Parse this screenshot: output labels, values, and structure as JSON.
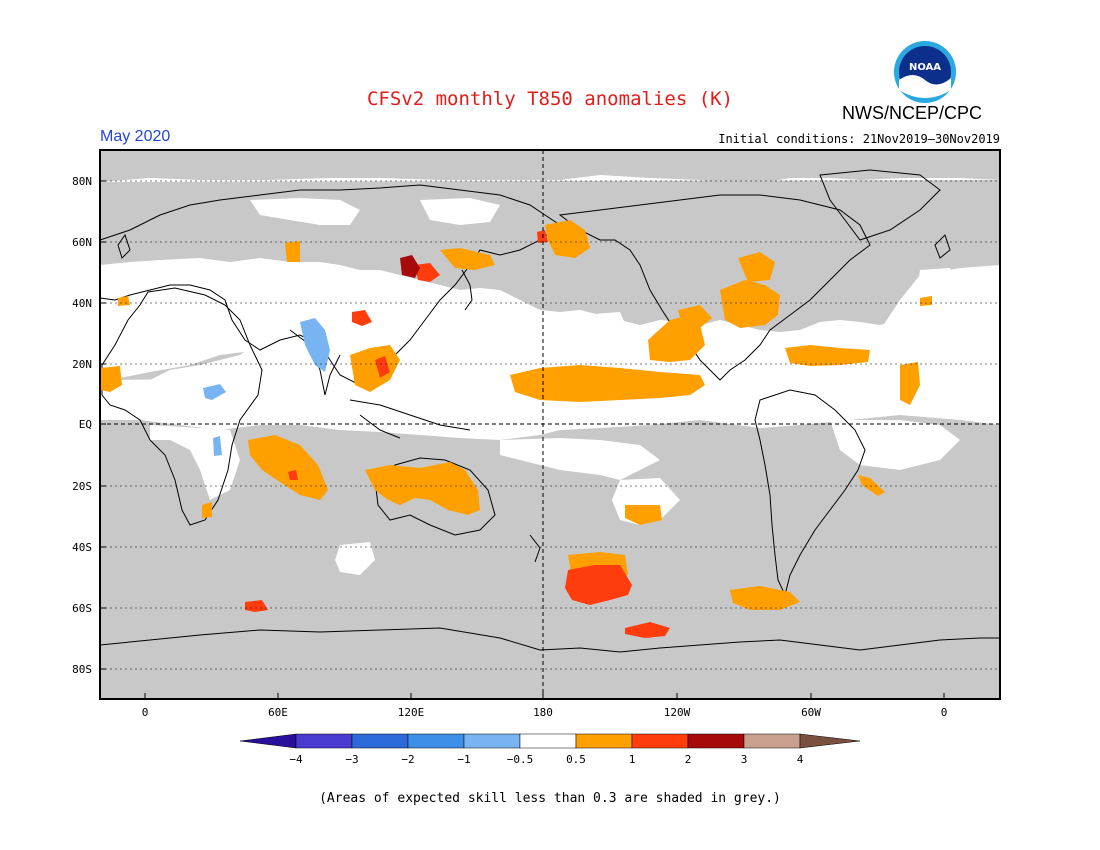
{
  "title": "CFSv2 monthly T850 anomalies (K)",
  "agency": "NWS/NCEP/CPC",
  "logo": {
    "text": "NOAA",
    "icon": "noaa-logo"
  },
  "month": "May 2020",
  "initial_conditions": "Initial conditions: 21Nov2019–30Nov2019",
  "footnote": "(Areas of expected skill less than 0.3 are shaded in grey.)",
  "map": {
    "lat_labels": [
      "80N",
      "60N",
      "40N",
      "20N",
      "EQ",
      "20S",
      "40S",
      "60S",
      "80S"
    ],
    "lon_labels": [
      "0",
      "60E",
      "120E",
      "180",
      "120W",
      "60W",
      "0"
    ],
    "skill_mask_color": "#c8c8c8",
    "ocean_color": "#ffffff",
    "coast_color": "#000000"
  },
  "colorbar": {
    "labels": [
      "−4",
      "−3",
      "−2",
      "−1",
      "−0.5",
      "0.5",
      "1",
      "2",
      "3",
      "4"
    ],
    "colors": [
      "#2a0f9c",
      "#4a3bd0",
      "#2b6ad8",
      "#3d8fe8",
      "#79b4f2",
      "#ffffff",
      "#ff9f00",
      "#ff3c0c",
      "#a60a0a",
      "#c9a08e",
      "#7a5040"
    ]
  }
}
